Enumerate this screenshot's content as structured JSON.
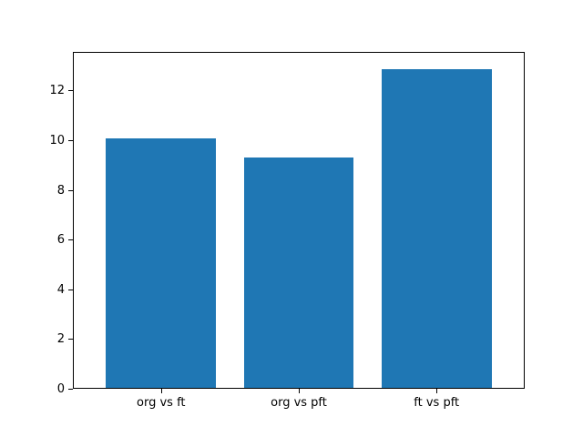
{
  "chart_data": {
    "type": "bar",
    "title": "",
    "categories": [
      "org vs ft",
      "org vs pft",
      "ft vs pft"
    ],
    "values": [
      10.1,
      9.3,
      12.9
    ],
    "bar_color": "#1f77b4",
    "xlabel": "",
    "ylabel": "",
    "ylim": [
      0,
      13.55
    ],
    "yticks": [
      0,
      2,
      4,
      6,
      8,
      10,
      12
    ],
    "bar_width_fraction": 0.8,
    "grid": false,
    "legend": "none",
    "background_color": "#ffffff",
    "spine_color": "#000000"
  }
}
